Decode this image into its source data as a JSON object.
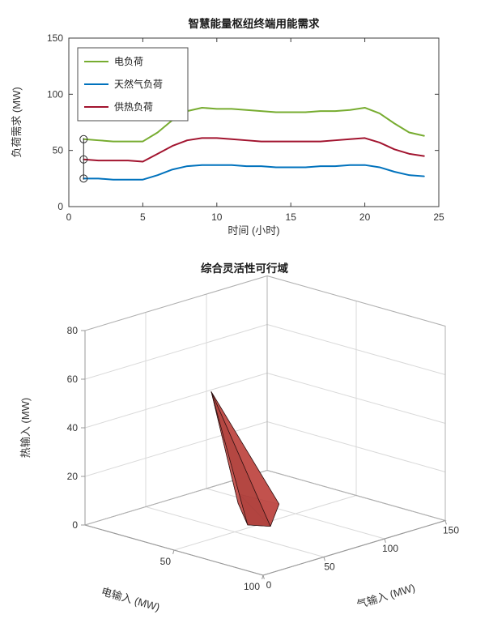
{
  "figure": {
    "bg_color": "#ffffff",
    "axes_color": "#3c3c3c",
    "grid_color": "#d9d9d9",
    "box3d_color": "#b0b0b0"
  },
  "chart_data": [
    {
      "type": "line",
      "title": "智慧能量枢纽终端用能需求",
      "xlabel": "时间 (小时)",
      "ylabel": "负荷需求 (MW)",
      "xlim": [
        0,
        25
      ],
      "ylim": [
        0,
        150
      ],
      "xticks": [
        0,
        5,
        10,
        15,
        20,
        25
      ],
      "yticks": [
        0,
        50,
        100,
        150
      ],
      "grid": false,
      "legend_position": "top-left",
      "x": [
        1,
        2,
        3,
        4,
        5,
        6,
        7,
        8,
        9,
        10,
        11,
        12,
        13,
        14,
        15,
        16,
        17,
        18,
        19,
        20,
        21,
        22,
        23,
        24
      ],
      "series": [
        {
          "name": "电负荷",
          "color": "#77ac30",
          "values": [
            60,
            59,
            58,
            58,
            58,
            66,
            77,
            85,
            88,
            87,
            87,
            86,
            85,
            84,
            84,
            84,
            85,
            85,
            86,
            88,
            83,
            74,
            66,
            63
          ]
        },
        {
          "name": "天然气负荷",
          "color": "#0072bd",
          "values": [
            25,
            25,
            24,
            24,
            24,
            28,
            33,
            36,
            37,
            37,
            37,
            36,
            36,
            35,
            35,
            35,
            36,
            36,
            37,
            37,
            35,
            31,
            28,
            27
          ]
        },
        {
          "name": "供热负荷",
          "color": "#a2142f",
          "values": [
            42,
            41,
            41,
            41,
            40,
            47,
            54,
            59,
            61,
            61,
            60,
            59,
            58,
            58,
            58,
            58,
            58,
            59,
            60,
            61,
            57,
            51,
            47,
            45
          ]
        }
      ],
      "markers": {
        "x": 1,
        "values": [
          60,
          42,
          25
        ],
        "color": "#2b2b2b"
      },
      "cursor_line": {
        "x": 1,
        "y_from": 24,
        "y_to": 61,
        "color": "#2b2b2b"
      }
    },
    {
      "type": "polyhedron-3d",
      "title": "综合灵活性可行域",
      "xlabel": "电输入 (MW)",
      "ylabel": "气输入 (MW)",
      "zlabel": "热输入 (MW)",
      "xlim": [
        0,
        100
      ],
      "ylim": [
        0,
        150
      ],
      "zlim": [
        0,
        80
      ],
      "xticks": [
        50,
        100
      ],
      "yticks": [
        0,
        50,
        100,
        150
      ],
      "zticks": [
        0,
        20,
        40,
        60,
        80
      ],
      "view": "matlab-default az -37.5 el 30",
      "vertices": [
        [
          30,
          60,
          52
        ],
        [
          15,
          105,
          0
        ],
        [
          36,
          107,
          0
        ],
        [
          55,
          72,
          0
        ],
        [
          47,
          65,
          0
        ],
        [
          28,
          85,
          2
        ]
      ],
      "faces": [
        [
          0,
          1,
          2
        ],
        [
          0,
          2,
          3
        ],
        [
          0,
          3,
          4
        ],
        [
          0,
          4,
          5
        ],
        [
          0,
          5,
          1
        ],
        [
          1,
          2,
          3
        ],
        [
          1,
          3,
          4
        ],
        [
          1,
          4,
          5
        ]
      ],
      "face_colors": [
        "#cd6662",
        "#c1504c",
        "#b24440",
        "#c65a55",
        "#d4716d",
        "#a03733",
        "#aa3d39",
        "#963430"
      ],
      "edge_color": "#2b0f0f"
    }
  ]
}
